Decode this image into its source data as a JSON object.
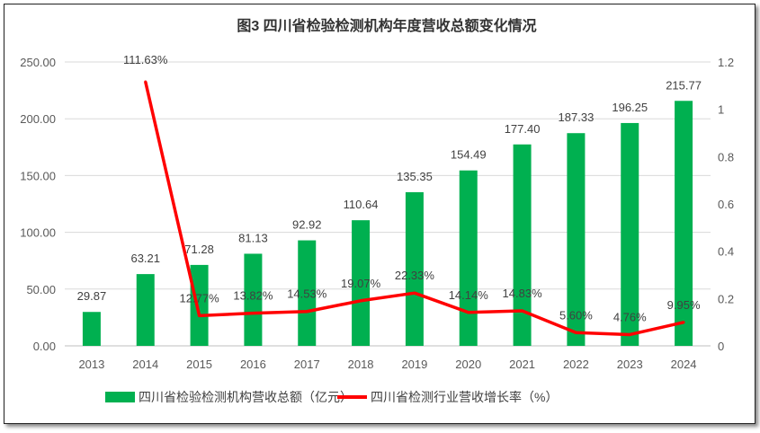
{
  "chart_data": {
    "type": "bar+line",
    "title": "图3  四川省检验检测机构年度营收总额变化情况",
    "categories": [
      "2013",
      "2014",
      "2015",
      "2016",
      "2017",
      "2018",
      "2019",
      "2020",
      "2021",
      "2022",
      "2023",
      "2024"
    ],
    "series": [
      {
        "name": "四川省检验检测机构营收总额（亿元）",
        "type": "bar",
        "axis": "left",
        "color": "#00B050",
        "values": [
          29.87,
          63.21,
          71.28,
          81.13,
          92.92,
          110.64,
          135.35,
          154.49,
          177.4,
          187.33,
          196.25,
          215.77
        ],
        "labels": [
          "29.87",
          "63.21",
          "71.28",
          "81.13",
          "92.92",
          "110.64",
          "135.35",
          "154.49",
          "177.40",
          "187.33",
          "196.25",
          "215.77"
        ]
      },
      {
        "name": "四川省检测行业营收增长率（%）",
        "type": "line",
        "axis": "right",
        "color": "#FF0000",
        "values": [
          null,
          1.1163,
          0.1277,
          0.1382,
          0.1453,
          0.1907,
          0.2233,
          0.1414,
          0.1483,
          0.056,
          0.0476,
          0.0995
        ],
        "labels": [
          null,
          "111.63%",
          "12.77%",
          "13.82%",
          "14.53%",
          "19.07%",
          "22.33%",
          "14.14%",
          "14.83%",
          "5.60%",
          "4.76%",
          "9.95%"
        ]
      }
    ],
    "left_axis": {
      "range": [
        0,
        250
      ],
      "ticks": [
        "0.00",
        "50.00",
        "100.00",
        "150.00",
        "200.00",
        "250.00"
      ]
    },
    "right_axis": {
      "range": [
        0,
        1.2
      ],
      "ticks": [
        "0",
        "0.2",
        "0.4",
        "0.6",
        "0.8",
        "1",
        "1.2"
      ]
    },
    "grid": true,
    "legend": "bottom"
  }
}
